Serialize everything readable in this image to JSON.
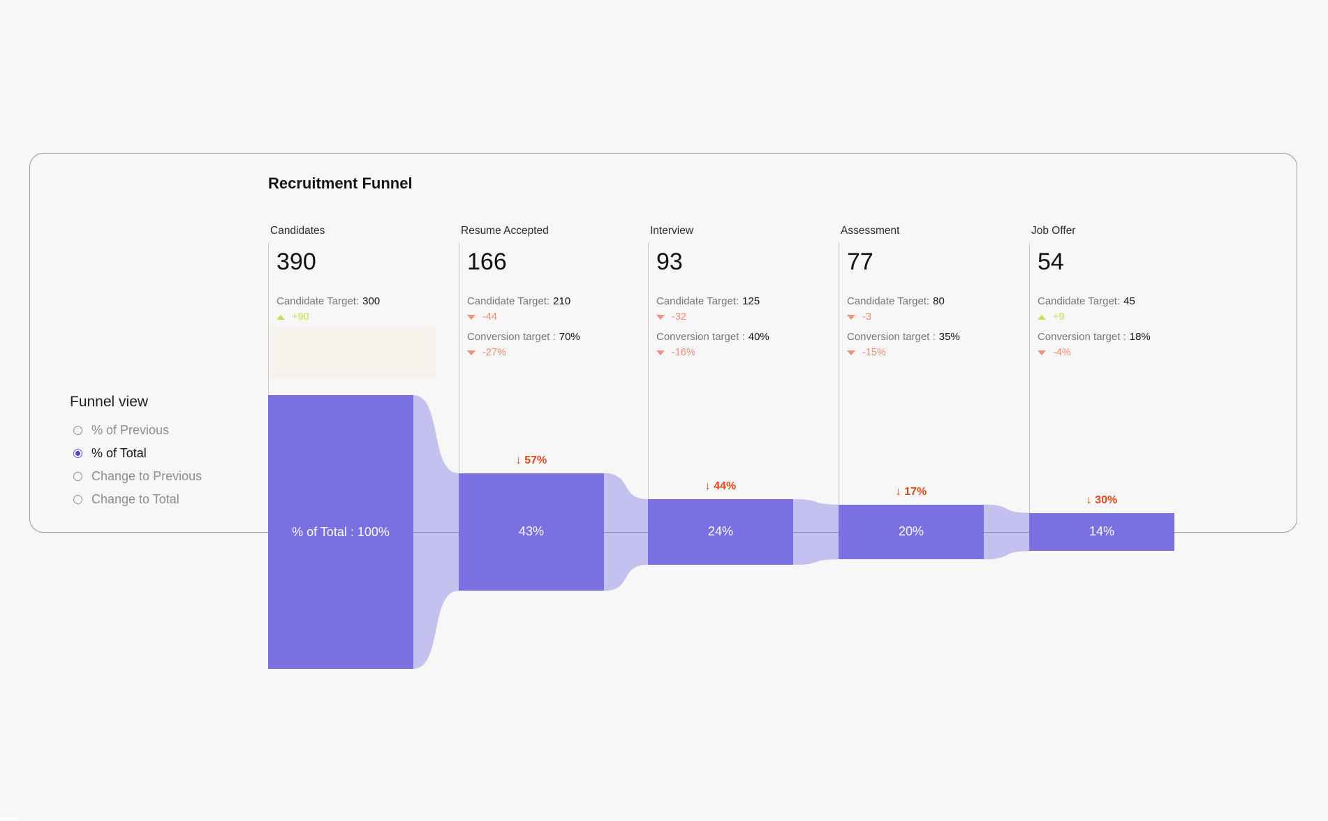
{
  "funnel_view": {
    "heading": "Funnel view",
    "options": [
      {
        "label": "% of Previous",
        "state": ""
      },
      {
        "label": "% of Total",
        "state": "selected"
      },
      {
        "label": "Change to Previous",
        "state": ""
      },
      {
        "label": "Change to Total",
        "state": ""
      }
    ]
  },
  "chart_data": {
    "type": "funnel",
    "title": "Recruitment Funnel",
    "view": "% of Total",
    "stages": [
      {
        "label": "Candidates",
        "value": 390,
        "candidate_target_label": "Candidate Target:",
        "candidate_target": 300,
        "target_delta": "+90",
        "target_delta_dir": "up",
        "pct_of_total": 100,
        "bar_label": "% of Total : 100%"
      },
      {
        "label": "Resume Accepted",
        "value": 166,
        "candidate_target_label": "Candidate Target:",
        "candidate_target": 210,
        "target_delta": "-44",
        "target_delta_dir": "down",
        "conversion_target_label": "Conversion target :",
        "conversion_target": "70%",
        "conversion_delta": "-27%",
        "conversion_delta_dir": "down",
        "pct_of_total": 43,
        "bar_label": "43%",
        "drop_label": "↓ 57%"
      },
      {
        "label": "Interview",
        "value": 93,
        "candidate_target_label": "Candidate Target:",
        "candidate_target": 125,
        "target_delta": "-32",
        "target_delta_dir": "down",
        "conversion_target_label": "Conversion target :",
        "conversion_target": "40%",
        "conversion_delta": "-16%",
        "conversion_delta_dir": "down",
        "pct_of_total": 24,
        "bar_label": "24%",
        "drop_label": "↓ 44%"
      },
      {
        "label": "Assessment",
        "value": 77,
        "candidate_target_label": "Candidate Target:",
        "candidate_target": 80,
        "target_delta": "-3",
        "target_delta_dir": "down",
        "conversion_target_label": "Conversion target :",
        "conversion_target": "35%",
        "conversion_delta": "-15%",
        "conversion_delta_dir": "down",
        "pct_of_total": 20,
        "bar_label": "20%",
        "drop_label": "↓ 17%"
      },
      {
        "label": "Job Offer",
        "value": 54,
        "candidate_target_label": "Candidate Target:",
        "candidate_target": 45,
        "target_delta": "+9",
        "target_delta_dir": "up",
        "conversion_target_label": "Conversion target :",
        "conversion_target": "18%",
        "conversion_delta": "-4%",
        "conversion_delta_dir": "down",
        "pct_of_total": 14,
        "bar_label": "14%",
        "drop_label": "↓ 30%"
      }
    ],
    "colors": {
      "bar": "#7b70e1",
      "connector": "rgba(123,112,225,0.40)",
      "drop_label": "#e2481c",
      "negative": "#f0917c",
      "positive": "#c4e052",
      "selected_radio": "#4f46c9",
      "background": "#f7f7f7"
    }
  }
}
